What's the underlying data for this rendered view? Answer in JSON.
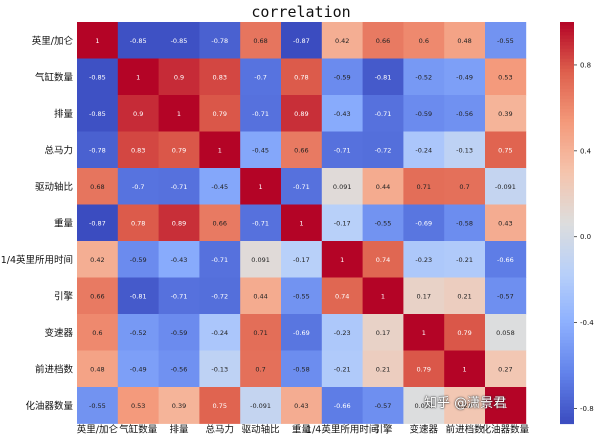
{
  "chart_data": {
    "type": "heatmap",
    "title": "correlation",
    "labels": [
      "英里/加仑",
      "气缸数量",
      "排量",
      "总马力",
      "驱动轴比",
      "重量",
      "1/4英里所用时间",
      "引擎",
      "变速器",
      "前进档数",
      "化油器数量"
    ],
    "values": [
      [
        1,
        -0.85,
        -0.85,
        -0.78,
        0.68,
        -0.87,
        0.42,
        0.66,
        0.6,
        0.48,
        -0.55
      ],
      [
        -0.85,
        1,
        0.9,
        0.83,
        -0.7,
        0.78,
        -0.59,
        -0.81,
        -0.52,
        -0.49,
        0.53
      ],
      [
        -0.85,
        0.9,
        1,
        0.79,
        -0.71,
        0.89,
        -0.43,
        -0.71,
        -0.59,
        -0.56,
        0.39
      ],
      [
        -0.78,
        0.83,
        0.79,
        1,
        -0.45,
        0.66,
        -0.71,
        -0.72,
        -0.24,
        -0.13,
        0.75
      ],
      [
        0.68,
        -0.7,
        -0.71,
        -0.45,
        1,
        -0.71,
        0.091,
        0.44,
        0.71,
        0.7,
        -0.091
      ],
      [
        -0.87,
        0.78,
        0.89,
        0.66,
        -0.71,
        1,
        -0.17,
        -0.55,
        -0.69,
        -0.58,
        0.43
      ],
      [
        0.42,
        -0.59,
        -0.43,
        -0.71,
        0.091,
        -0.17,
        1,
        0.74,
        -0.23,
        -0.21,
        -0.66
      ],
      [
        0.66,
        -0.81,
        -0.71,
        -0.72,
        0.44,
        -0.55,
        0.74,
        1,
        0.17,
        0.21,
        -0.57
      ],
      [
        0.6,
        -0.52,
        -0.59,
        -0.24,
        0.71,
        -0.69,
        -0.23,
        0.17,
        1,
        0.79,
        0.058
      ],
      [
        0.48,
        -0.49,
        -0.56,
        -0.13,
        0.7,
        -0.58,
        -0.21,
        0.21,
        0.79,
        1,
        0.27
      ],
      [
        -0.55,
        0.53,
        0.39,
        0.75,
        -0.091,
        0.43,
        -0.66,
        -0.57,
        0.058,
        0.27,
        1
      ]
    ],
    "colormap": "coolwarm",
    "vmin": -0.87,
    "vmax": 1,
    "colorbar_ticks": [
      "0.8",
      "0.4",
      "0.0",
      "-0.4",
      "-0.8"
    ],
    "colorbar_tick_values": [
      0.8,
      0.4,
      0.0,
      -0.4,
      -0.8
    ]
  },
  "watermark": "知乎 @潇景君"
}
